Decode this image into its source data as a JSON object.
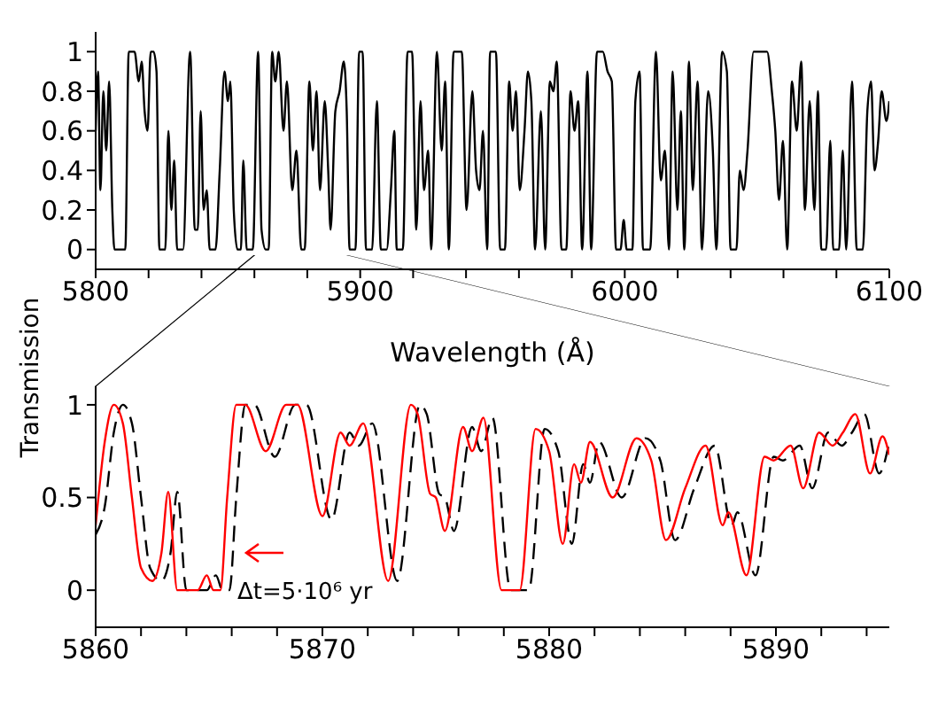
{
  "chart_data": [
    {
      "type": "line",
      "xlabel": "Wavelength (Å)",
      "xlim": [
        5800,
        6100
      ],
      "xticks": [
        5800,
        {
          "value": 5820,
          "label": null
        },
        {
          "value": 5840,
          "label": null
        },
        {
          "value": 5860,
          "label": null
        },
        {
          "value": 5880,
          "label": null
        },
        5900,
        {
          "value": 5920,
          "label": null
        },
        {
          "value": 5940,
          "label": null
        },
        {
          "value": 5960,
          "label": null
        },
        {
          "value": 5980,
          "label": null
        },
        6000,
        {
          "value": 6020,
          "label": null
        },
        {
          "value": 6040,
          "label": null
        },
        {
          "value": 6060,
          "label": null
        },
        {
          "value": 6080,
          "label": null
        },
        6100
      ],
      "ylim": [
        -0.1,
        1.1
      ],
      "yticks": [
        0,
        0.2,
        0.4,
        0.6,
        0.8,
        1
      ],
      "marker": "none",
      "series": [
        {
          "color": "#000000",
          "line_style": "solid",
          "x": [
            5800.0,
            5800.9,
            5801.8,
            5802.9,
            5804.0,
            5805.1,
            5806.3,
            5807.1,
            5811.2,
            5812.5,
            5814.7,
            5816.3,
            5817.4,
            5818.5,
            5819.6,
            5820.8,
            5821.9,
            5823.0,
            5824.1,
            5826.3,
            5827.5,
            5828.6,
            5829.7,
            5830.8,
            5833.0,
            5835.7,
            5837.5,
            5838.6,
            5839.7,
            5840.8,
            5842.0,
            5843.1,
            5845.3,
            5846.9,
            5848.7,
            5850.0,
            5850.9,
            5852.2,
            5853.6,
            5854.9,
            5855.8,
            5857.1,
            5859.4,
            5861.4,
            5862.7,
            5864.3,
            5865.4,
            5866.7,
            5867.9,
            5869.2,
            5871.0,
            5872.3,
            5874.3,
            5875.9,
            5877.7,
            5879.0,
            5880.8,
            5882.1,
            5883.5,
            5884.8,
            5886.6,
            5887.9,
            5888.8,
            5890.6,
            5892.2,
            5893.8,
            5894.9,
            5896.0,
            5898.2,
            5899.6,
            5900.9,
            5902.2,
            5904.5,
            5906.3,
            5907.8,
            5910.0,
            5911.6,
            5912.9,
            5913.8,
            5916.1,
            5917.9,
            5919.6,
            5921.2,
            5922.8,
            5924.1,
            5925.7,
            5926.8,
            5929.0,
            5930.8,
            5932.1,
            5933.5,
            5935.3,
            5938.4,
            5940.2,
            5942.4,
            5943.8,
            5945.1,
            5946.4,
            5948.0,
            5949.1,
            5951.3,
            5952.9,
            5954.7,
            5956.3,
            5957.6,
            5958.9,
            5960.3,
            5962.1,
            5963.4,
            5964.7,
            5966.1,
            5968.3,
            5969.9,
            5971.7,
            5973.0,
            5974.3,
            5976.1,
            5977.9,
            5979.5,
            5981.0,
            5982.4,
            5983.9,
            5985.9,
            5987.3,
            5989.5,
            5991.7,
            5993.5,
            5995.1,
            5996.7,
            5998.4,
            5999.6,
            6000.7,
            6002.9,
            6004.0,
            6005.6,
            6006.9,
            6009.6,
            6011.8,
            6013.6,
            6015.2,
            6016.7,
            6018.1,
            6019.9,
            6021.2,
            6022.5,
            6024.3,
            6025.7,
            6027.5,
            6029.2,
            6031.5,
            6033.3,
            6034.6,
            6036.8,
            6038.6,
            6040.0,
            6042.2,
            6043.5,
            6044.9,
            6046.4,
            6048.7,
            6051.6,
            6053.8,
            6055.6,
            6056.9,
            6058.3,
            6059.8,
            6061.4,
            6063.2,
            6065.0,
            6066.7,
            6068.1,
            6069.9,
            6071.7,
            6073.0,
            6074.3,
            6076.1,
            6077.7,
            6078.8,
            6081.0,
            6082.4,
            6083.7,
            6085.9,
            6087.7,
            6090.0,
            6091.7,
            6093.1,
            6094.4,
            6095.8,
            6097.1,
            6098.9,
            6100.0
          ],
          "values": [
            0.6,
            0.9,
            0.3,
            0.8,
            0.5,
            0.85,
            0.2,
            0.0,
            0.0,
            1.0,
            1.0,
            0.85,
            0.95,
            0.7,
            0.6,
            1.0,
            1.0,
            0.9,
            0.0,
            0.0,
            0.6,
            0.2,
            0.45,
            0.0,
            0.0,
            1.0,
            0.1,
            0.1,
            0.7,
            0.2,
            0.3,
            0.0,
            0.0,
            0.4,
            0.9,
            0.75,
            0.85,
            0.2,
            0.0,
            0.0,
            0.45,
            0.0,
            0.0,
            1.0,
            0.1,
            0.0,
            0.0,
            1.0,
            0.85,
            1.0,
            0.6,
            0.85,
            0.3,
            0.5,
            0.0,
            0.0,
            0.85,
            0.5,
            0.8,
            0.3,
            0.75,
            0.4,
            0.1,
            0.7,
            0.8,
            0.95,
            0.7,
            0.0,
            0.0,
            1.0,
            1.0,
            0.0,
            0.0,
            0.75,
            0.0,
            0.0,
            0.3,
            0.6,
            0.0,
            0.0,
            1.0,
            1.0,
            0.1,
            0.75,
            0.3,
            0.5,
            0.0,
            1.0,
            0.5,
            0.85,
            0.0,
            1.0,
            1.0,
            0.2,
            0.8,
            0.4,
            0.3,
            0.6,
            0.0,
            1.0,
            1.0,
            0.0,
            0.0,
            0.85,
            0.6,
            0.8,
            0.3,
            0.6,
            0.9,
            0.75,
            0.0,
            0.7,
            0.0,
            0.85,
            0.8,
            0.95,
            0.0,
            0.0,
            0.8,
            0.6,
            0.75,
            0.0,
            0.9,
            0.0,
            1.0,
            1.0,
            0.9,
            0.85,
            0.0,
            0.0,
            0.15,
            0.0,
            0.0,
            0.75,
            0.9,
            0.0,
            0.0,
            1.0,
            0.35,
            0.5,
            0.0,
            0.9,
            0.2,
            0.7,
            0.0,
            0.95,
            0.3,
            0.85,
            0.0,
            0.8,
            0.5,
            0.0,
            1.0,
            0.9,
            0.0,
            0.0,
            0.4,
            0.3,
            0.5,
            1.0,
            1.0,
            1.0,
            0.8,
            0.6,
            0.25,
            0.55,
            0.0,
            0.85,
            0.6,
            0.95,
            0.2,
            0.75,
            0.2,
            0.8,
            0.0,
            0.0,
            0.55,
            0.0,
            0.0,
            0.5,
            0.0,
            0.85,
            0.0,
            0.0,
            0.7,
            0.85,
            0.4,
            0.55,
            0.8,
            0.65,
            0.75
          ]
        }
      ]
    },
    {
      "type": "line",
      "ylabel": "Transmission",
      "annotations": [
        "Δt=5·10⁶ yr"
      ],
      "xlim": [
        5860,
        5895
      ],
      "xticks": [
        5860,
        {
          "value": 5862,
          "label": null
        },
        {
          "value": 5864,
          "label": null
        },
        {
          "value": 5866,
          "label": null
        },
        {
          "value": 5868,
          "label": null
        },
        5870,
        {
          "value": 5872,
          "label": null
        },
        {
          "value": 5874,
          "label": null
        },
        {
          "value": 5876,
          "label": null
        },
        {
          "value": 5878,
          "label": null
        },
        5880,
        {
          "value": 5882,
          "label": null
        },
        {
          "value": 5884,
          "label": null
        },
        {
          "value": 5886,
          "label": null
        },
        {
          "value": 5888,
          "label": null
        },
        5890,
        {
          "value": 5892,
          "label": null
        },
        {
          "value": 5894,
          "label": null
        }
      ],
      "ylim": [
        -0.2,
        1.1
      ],
      "yticks": [
        0,
        0.5,
        1
      ],
      "marker": "none",
      "series": [
        {
          "color": "#000000",
          "line_style": "dashed",
          "x": [
            5860.0,
            5860.4,
            5860.8,
            5861.2,
            5861.6,
            5862.0,
            5862.4,
            5862.9,
            5863.3,
            5863.6,
            5864.0,
            5864.9,
            5865.3,
            5865.6,
            5865.9,
            5866.2,
            5866.6,
            5867.0,
            5867.9,
            5868.8,
            5869.3,
            5870.4,
            5871.2,
            5871.6,
            5872.2,
            5873.3,
            5874.3,
            5874.6,
            5875.15,
            5875.4,
            5875.8,
            5876.6,
            5877.0,
            5877.5,
            5878.3,
            5879.1,
            5879.8,
            5880.4,
            5881.0,
            5881.5,
            5881.8,
            5882.2,
            5883.2,
            5884.25,
            5884.9,
            5885.55,
            5886.4,
            5887.3,
            5888.05,
            5888.3,
            5889.1,
            5889.9,
            5890.3,
            5891.05,
            5891.6,
            5892.3,
            5892.9,
            5893.35,
            5893.9,
            5894.55,
            5895.0
          ],
          "values": [
            0.3,
            0.45,
            0.85,
            1.0,
            0.9,
            0.5,
            0.12,
            0.05,
            0.2,
            0.53,
            0.0,
            0.0,
            0.08,
            0.0,
            0.0,
            0.5,
            1.0,
            1.0,
            0.72,
            1.0,
            1.0,
            0.38,
            0.85,
            0.78,
            0.9,
            0.05,
            1.0,
            0.95,
            0.52,
            0.5,
            0.32,
            0.88,
            0.75,
            0.93,
            0.0,
            0.0,
            0.87,
            0.75,
            0.25,
            0.68,
            0.58,
            0.8,
            0.5,
            0.82,
            0.7,
            0.27,
            0.55,
            0.78,
            0.35,
            0.42,
            0.08,
            0.72,
            0.7,
            0.78,
            0.55,
            0.85,
            0.78,
            0.85,
            0.95,
            0.63,
            0.8
          ]
        },
        {
          "color": "#ff0000",
          "line_style": "solid",
          "x": [
            5860.0,
            5860.4,
            5860.8,
            5861.2,
            5861.6,
            5862.0,
            5862.5,
            5862.9,
            5863.2,
            5863.6,
            5864.5,
            5864.9,
            5865.2,
            5865.5,
            5865.8,
            5866.2,
            5866.6,
            5867.5,
            5868.4,
            5868.9,
            5870.0,
            5870.8,
            5871.2,
            5871.8,
            5872.9,
            5873.9,
            5874.2,
            5874.75,
            5875.0,
            5875.4,
            5876.2,
            5876.6,
            5877.1,
            5877.9,
            5878.7,
            5879.4,
            5880.0,
            5880.6,
            5881.1,
            5881.4,
            5881.8,
            5882.8,
            5883.85,
            5884.5,
            5885.15,
            5886.0,
            5886.9,
            5887.65,
            5887.9,
            5888.7,
            5889.5,
            5889.9,
            5890.65,
            5891.2,
            5891.9,
            5892.5,
            5892.95,
            5893.5,
            5894.15,
            5894.7,
            5895.0
          ],
          "values": [
            0.35,
            0.8,
            1.0,
            0.9,
            0.5,
            0.12,
            0.05,
            0.2,
            0.53,
            0.0,
            0.0,
            0.08,
            0.0,
            0.0,
            0.5,
            1.0,
            1.0,
            0.75,
            1.0,
            1.0,
            0.4,
            0.85,
            0.78,
            0.9,
            0.05,
            1.0,
            0.95,
            0.52,
            0.5,
            0.32,
            0.88,
            0.75,
            0.93,
            0.0,
            0.0,
            0.87,
            0.75,
            0.25,
            0.68,
            0.58,
            0.8,
            0.5,
            0.82,
            0.7,
            0.27,
            0.55,
            0.78,
            0.35,
            0.42,
            0.08,
            0.72,
            0.7,
            0.78,
            0.55,
            0.85,
            0.78,
            0.85,
            0.95,
            0.63,
            0.83,
            0.73
          ]
        }
      ]
    }
  ]
}
